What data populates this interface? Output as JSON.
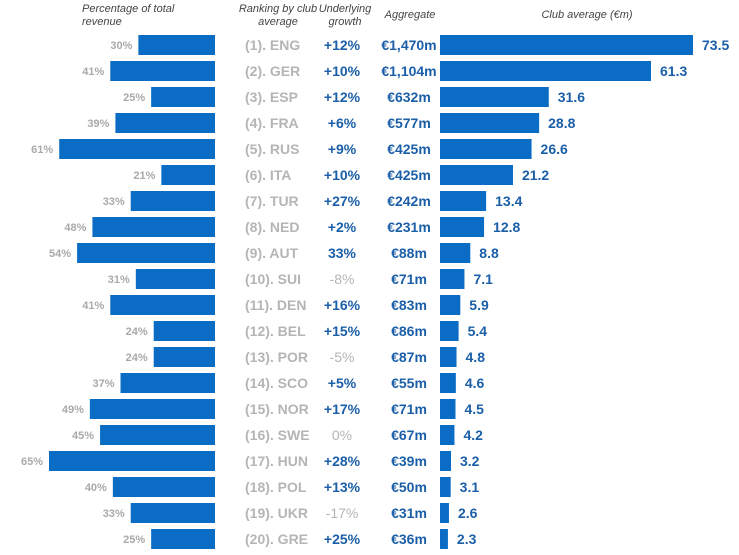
{
  "headers": {
    "pct": "Percentage of total revenue",
    "rank": "Ranking by club average",
    "growth": "Underlying growth",
    "aggregate": "Aggregate",
    "avg": "Club average (€m)"
  },
  "colors": {
    "bar": "#0a6cc4",
    "accent_text": "#1b5fa8",
    "muted_text": "#b5b5b5",
    "pct_text": "#a9a9a9"
  },
  "chart_data": {
    "type": "bar",
    "categories": [
      "(1). ENG",
      "(2). GER",
      "(3). ESP",
      "(4). FRA",
      "(5). RUS",
      "(6). ITA",
      "(7). TUR",
      "(8). NED",
      "(9). AUT",
      "(10). SUI",
      "(11). DEN",
      "(12). BEL",
      "(13). POR",
      "(14). SCO",
      "(15). NOR",
      "(16). SWE",
      "(17). HUN",
      "(18). POL",
      "(19). UKR",
      "(20). GRE"
    ],
    "series": [
      {
        "name": "Percentage of total revenue",
        "values": [
          30,
          41,
          25,
          39,
          61,
          21,
          33,
          48,
          54,
          31,
          41,
          24,
          24,
          37,
          49,
          45,
          65,
          40,
          33,
          25
        ],
        "labels": [
          "30%",
          "41%",
          "25%",
          "39%",
          "61%",
          "21%",
          "33%",
          "48%",
          "54%",
          "31%",
          "41%",
          "24%",
          "24%",
          "37%",
          "49%",
          "45%",
          "65%",
          "40%",
          "33%",
          "25%"
        ]
      },
      {
        "name": "Club average (€m)",
        "values": [
          73.5,
          61.3,
          31.6,
          28.8,
          26.6,
          21.2,
          13.4,
          12.8,
          8.8,
          7.1,
          5.9,
          5.4,
          4.8,
          4.6,
          4.5,
          4.2,
          3.2,
          3.1,
          2.6,
          2.3
        ],
        "labels": [
          "73.5",
          "61.3",
          "31.6",
          "28.8",
          "26.6",
          "21.2",
          "13.4",
          "12.8",
          "8.8",
          "7.1",
          "5.9",
          "5.4",
          "4.8",
          "4.6",
          "4.5",
          "4.2",
          "3.2",
          "3.1",
          "2.6",
          "2.3"
        ]
      }
    ],
    "growth": [
      "+12%",
      "+10%",
      "+12%",
      "+6%",
      "+9%",
      "+10%",
      "+27%",
      "+2%",
      "33%",
      "-8%",
      "+16%",
      "+15%",
      "-5%",
      "+5%",
      "+17%",
      "0%",
      "+28%",
      "+13%",
      "-17%",
      "+25%"
    ],
    "growth_negative": [
      false,
      false,
      false,
      false,
      false,
      false,
      false,
      false,
      false,
      true,
      false,
      false,
      true,
      false,
      false,
      true,
      false,
      false,
      true,
      false
    ],
    "aggregate": [
      "€1,470m",
      "€1,104m",
      "€632m",
      "€577m",
      "€425m",
      "€425m",
      "€242m",
      "€231m",
      "€88m",
      "€71m",
      "€83m",
      "€86m",
      "€87m",
      "€55m",
      "€71m",
      "€67m",
      "€39m",
      "€50m",
      "€31m",
      "€36m"
    ],
    "xlim_pct": [
      0,
      65
    ],
    "xlim_avg": [
      0,
      73.5
    ],
    "grid": false,
    "legend": "none"
  }
}
